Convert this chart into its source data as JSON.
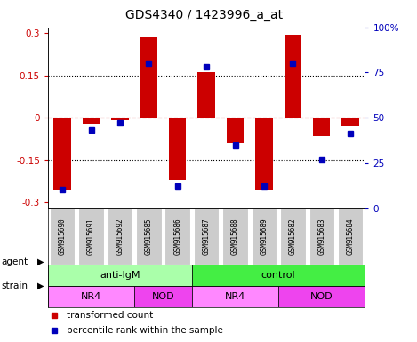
{
  "title": "GDS4340 / 1423996_a_at",
  "samples": [
    "GSM915690",
    "GSM915691",
    "GSM915692",
    "GSM915685",
    "GSM915686",
    "GSM915687",
    "GSM915688",
    "GSM915689",
    "GSM915682",
    "GSM915683",
    "GSM915684"
  ],
  "bar_values": [
    -0.255,
    -0.02,
    -0.01,
    0.285,
    -0.22,
    0.16,
    -0.09,
    -0.255,
    0.295,
    -0.065,
    -0.03
  ],
  "percentile_values": [
    10,
    43,
    47,
    80,
    12,
    78,
    35,
    12,
    80,
    27,
    41
  ],
  "ylim": [
    -0.32,
    0.32
  ],
  "yticks": [
    -0.3,
    -0.15,
    0,
    0.15,
    0.3
  ],
  "ytick_labels": [
    "-0.3",
    "-0.15",
    "0",
    "0.15",
    "0.3"
  ],
  "y2ticks": [
    0,
    25,
    50,
    75,
    100
  ],
  "y2tick_labels": [
    "0",
    "25",
    "50",
    "75",
    "100%"
  ],
  "agent_groups": [
    {
      "label": "anti-IgM",
      "start": 0,
      "end": 5,
      "color": "#AAFFAA"
    },
    {
      "label": "control",
      "start": 5,
      "end": 11,
      "color": "#44EE44"
    }
  ],
  "strain_groups": [
    {
      "label": "NR4",
      "start": 0,
      "end": 3,
      "color": "#FF88FF"
    },
    {
      "label": "NOD",
      "start": 3,
      "end": 5,
      "color": "#EE44EE"
    },
    {
      "label": "NR4",
      "start": 5,
      "end": 8,
      "color": "#FF88FF"
    },
    {
      "label": "NOD",
      "start": 8,
      "end": 11,
      "color": "#EE44EE"
    }
  ],
  "bar_color": "#CC0000",
  "dot_color": "#0000BB",
  "hline_color": "#CC0000",
  "dotted_color": "#000000",
  "bg_color": "#FFFFFF",
  "tick_label_color_left": "#CC0000",
  "tick_label_color_right": "#0000BB",
  "sample_bg": "#CCCCCC",
  "border_color": "#000000"
}
